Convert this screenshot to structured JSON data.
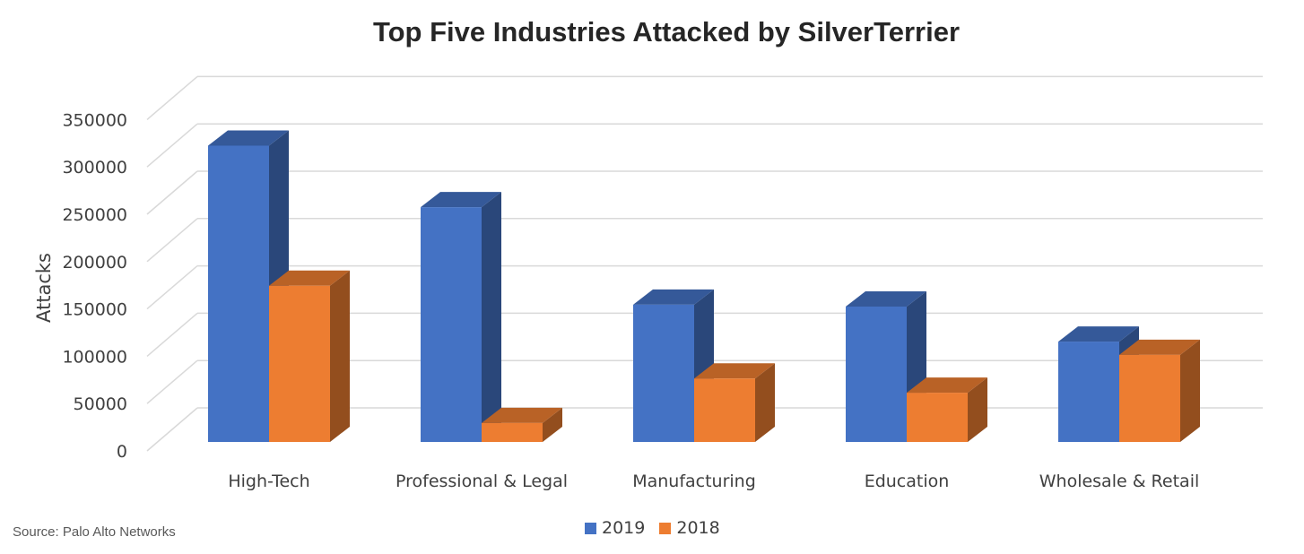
{
  "chart_data": {
    "type": "bar",
    "title": "Top Five Industries Attacked by SilverTerrier",
    "ylabel": "Attacks",
    "xlabel": "",
    "ylim": [
      0,
      350000
    ],
    "yticks": [
      "0",
      "50000",
      "100000",
      "150000",
      "200000",
      "250000",
      "300000",
      "350000"
    ],
    "categories": [
      "High-Tech",
      "Professional & Legal",
      "Manufacturing",
      "Education",
      "Wholesale & Retail"
    ],
    "series": [
      {
        "name": "2019",
        "values": [
          313000,
          248000,
          145000,
          143000,
          106000
        ],
        "color": "#4472C4"
      },
      {
        "name": "2018",
        "values": [
          165000,
          20000,
          67000,
          52000,
          92000
        ],
        "color": "#ED7D31"
      }
    ],
    "grid": true,
    "legend_position": "bottom",
    "projection": "3d-clustered-column"
  },
  "source_note": "Source: Palo Alto Networks"
}
